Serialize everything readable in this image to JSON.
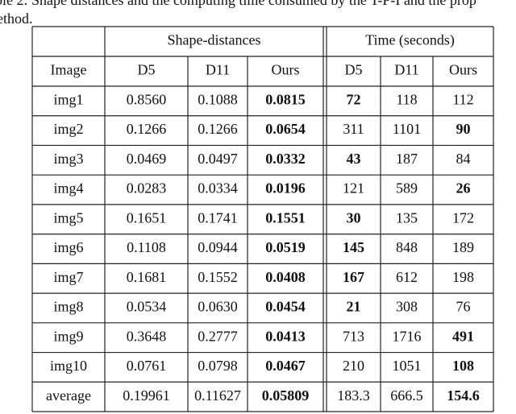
{
  "caption": {
    "lines": [
      "ble 2: Shape distances and the computing time consumed by the T-P-I and the prop",
      "ethod."
    ]
  },
  "table": {
    "group_headers": [
      "Shape-distances",
      "Time (seconds)"
    ],
    "headers": [
      "Image",
      "D5",
      "D11",
      "Ours",
      "D5",
      "D11",
      "Ours"
    ],
    "rows": [
      [
        "img1",
        "0.8560",
        "0.1088",
        "0.0815",
        "72",
        "118",
        "112"
      ],
      [
        "img2",
        "0.1266",
        "0.1266",
        "0.0654",
        "311",
        "1101",
        "90"
      ],
      [
        "img3",
        "0.0469",
        "0.0497",
        "0.0332",
        "43",
        "187",
        "84"
      ],
      [
        "img4",
        "0.0283",
        "0.0334",
        "0.0196",
        "121",
        "589",
        "26"
      ],
      [
        "img5",
        "0.1651",
        "0.1741",
        "0.1551",
        "30",
        "135",
        "172"
      ],
      [
        "img6",
        "0.1108",
        "0.0944",
        "0.0519",
        "145",
        "848",
        "189"
      ],
      [
        "img7",
        "0.1681",
        "0.1552",
        "0.0408",
        "167",
        "612",
        "198"
      ],
      [
        "img8",
        "0.0534",
        "0.0630",
        "0.0454",
        "21",
        "308",
        "76"
      ],
      [
        "img9",
        "0.3648",
        "0.2777",
        "0.0413",
        "713",
        "1716",
        "491"
      ],
      [
        "img10",
        "0.0761",
        "0.0798",
        "0.0467",
        "210",
        "1051",
        "108"
      ],
      [
        "average",
        "0.19961",
        "0.11627",
        "0.05809",
        "183.3",
        "666.5",
        "154.6"
      ]
    ],
    "bold": [
      [
        3,
        4
      ],
      [
        3,
        6
      ],
      [
        3,
        4
      ],
      [
        3,
        6
      ],
      [
        3,
        4
      ],
      [
        3,
        4
      ],
      [
        3,
        4
      ],
      [
        3,
        4
      ],
      [
        3,
        6
      ],
      [
        3,
        6
      ],
      [
        3,
        6
      ]
    ]
  }
}
